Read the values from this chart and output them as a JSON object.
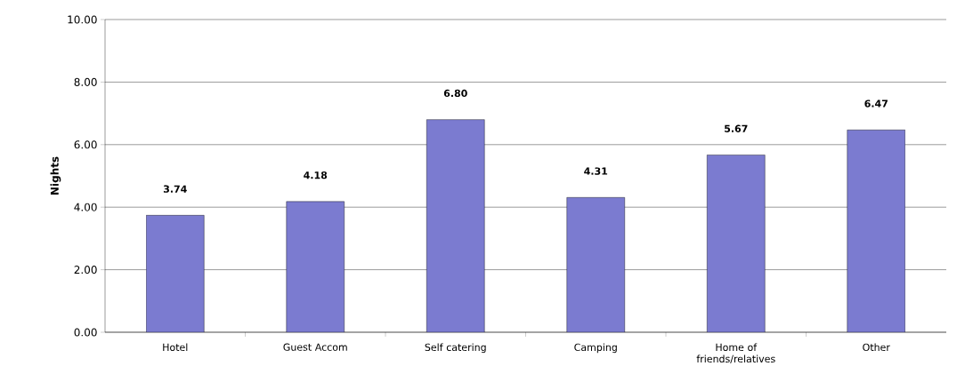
{
  "chart_data": {
    "type": "bar",
    "ylabel": "Nights",
    "categories": [
      "Hotel",
      "Guest Accom",
      "Self catering",
      "Camping",
      "Home of friends/relatives",
      "Other"
    ],
    "values": [
      3.74,
      4.18,
      6.8,
      4.31,
      5.67,
      6.47
    ],
    "value_labels": [
      "3.74",
      "4.18",
      "6.80",
      "4.31",
      "5.67",
      "6.47"
    ],
    "color": "#7b7bd0",
    "ylim": [
      0,
      10
    ],
    "yticks": [
      {
        "value": 0,
        "label": "0.00"
      },
      {
        "value": 2,
        "label": "2.00"
      },
      {
        "value": 4,
        "label": "4.00"
      },
      {
        "value": 6,
        "label": "6.00"
      },
      {
        "value": 8,
        "label": "8.00"
      },
      {
        "value": 10,
        "label": "10.00"
      }
    ],
    "grid": "y"
  }
}
